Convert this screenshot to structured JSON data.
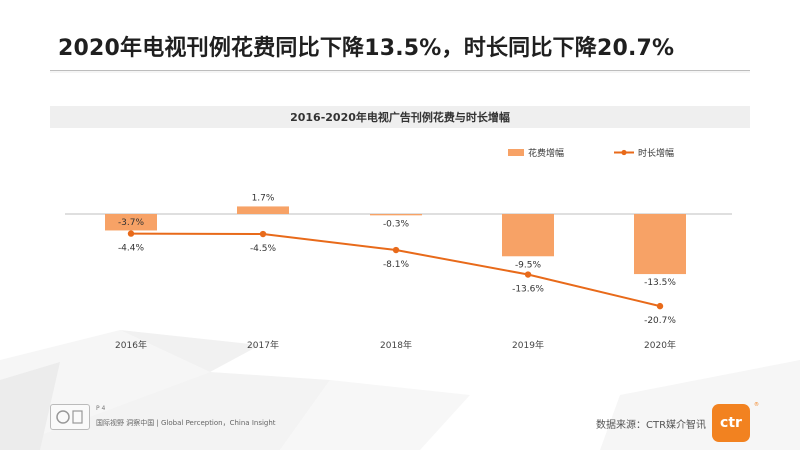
{
  "slide": {
    "title": "2020年电视刊例花费同比下降13.5%，时长同比下降20.7%",
    "page_number": "P 4",
    "tagline": "国际视野 洞察中国 | Global Perception，China Insight",
    "source": "数据来源：CTR媒介智讯",
    "logo_text": "ctr",
    "logo_mark": "®"
  },
  "chart_data": {
    "type": "bar+line",
    "title": "2016-2020年电视广告刊例花费与时长增幅",
    "categories": [
      "2016年",
      "2017年",
      "2018年",
      "2019年",
      "2020年"
    ],
    "series": [
      {
        "name": "花费增幅",
        "type": "bar",
        "values": [
          -3.7,
          1.7,
          -0.3,
          -9.5,
          -13.5
        ],
        "labels": [
          "-3.7%",
          "1.7%",
          "-0.3%",
          "-9.5%",
          "-13.5%"
        ],
        "color": "#f7a266"
      },
      {
        "name": "时长增幅",
        "type": "line",
        "values": [
          -4.4,
          -4.5,
          -8.1,
          -13.6,
          -20.7
        ],
        "labels": [
          "-4.4%",
          "-4.5%",
          "-8.1%",
          "-13.6%",
          "-20.7%"
        ],
        "color": "#e86a1a"
      }
    ],
    "ylim": [
      -22,
      4
    ],
    "legend_position": "top-right",
    "grid": false
  },
  "colors": {
    "accent": "#f28220",
    "bar": "#f7a266",
    "line": "#e86a1a"
  }
}
